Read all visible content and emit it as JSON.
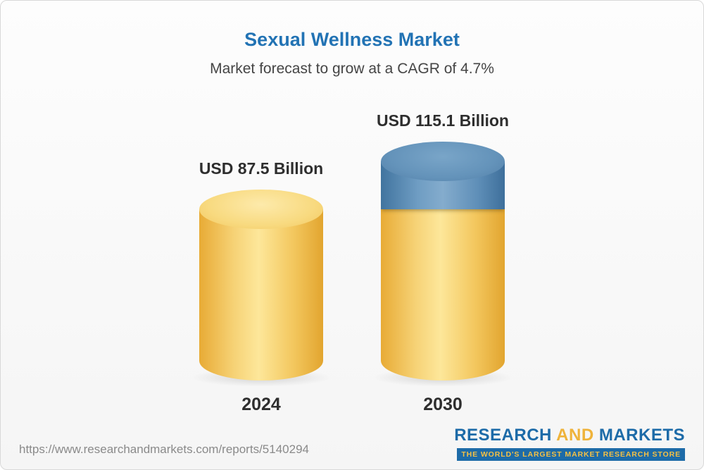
{
  "header": {
    "title": "Sexual Wellness Market",
    "subtitle": "Market forecast to grow at a CAGR of 4.7%"
  },
  "chart_data": {
    "type": "bar",
    "variant": "3d-cylinder",
    "title": "Sexual Wellness Market",
    "subtitle": "Market forecast to grow at a CAGR of 4.7%",
    "categories": [
      "2024",
      "2030"
    ],
    "values": [
      87.5,
      115.1
    ],
    "value_labels": [
      "USD 87.5 Billion",
      "USD 115.1 Billion"
    ],
    "unit": "USD Billion",
    "cagr_percent": 4.7,
    "ylim": [
      0,
      115.1
    ],
    "legend": "none",
    "colors": {
      "base_segment": "#f2c75f",
      "growth_segment": "#6493ba",
      "title": "#2273b4",
      "label_text": "#2e2e2e"
    }
  },
  "footer": {
    "url": "https://www.researchandmarkets.com/reports/5140294",
    "logo": {
      "research": "RESEARCH",
      "and": "AND",
      "markets": "MARKETS",
      "tagline": "THE WORLD'S LARGEST MARKET RESEARCH STORE"
    }
  }
}
